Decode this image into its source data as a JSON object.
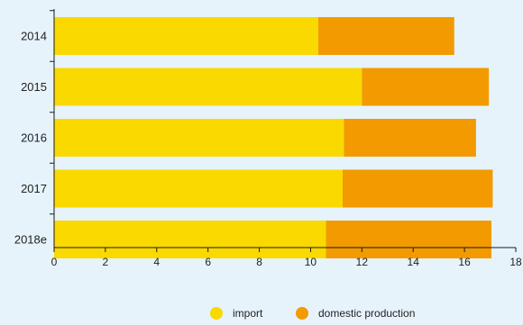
{
  "chart_data": {
    "type": "bar",
    "orientation": "horizontal",
    "stacked": true,
    "categories": [
      "2014",
      "2015",
      "2016",
      "2017",
      "2018e"
    ],
    "series": [
      {
        "name": "import",
        "values": [
          10.3,
          12.0,
          11.3,
          11.25,
          10.6
        ],
        "color": "#f9d900"
      },
      {
        "name": "domestic production",
        "values": [
          5.3,
          4.95,
          5.15,
          5.85,
          6.45
        ],
        "color": "#f29a00"
      }
    ],
    "xlim": [
      0,
      18
    ],
    "x_ticks": [
      "0",
      "2",
      "4",
      "6",
      "8",
      "10",
      "12",
      "14",
      "16",
      "18"
    ],
    "grid": false,
    "legend_position": "bottom-center",
    "background_color": "#e6f3fb",
    "axis_color": "#1a1a1a"
  }
}
